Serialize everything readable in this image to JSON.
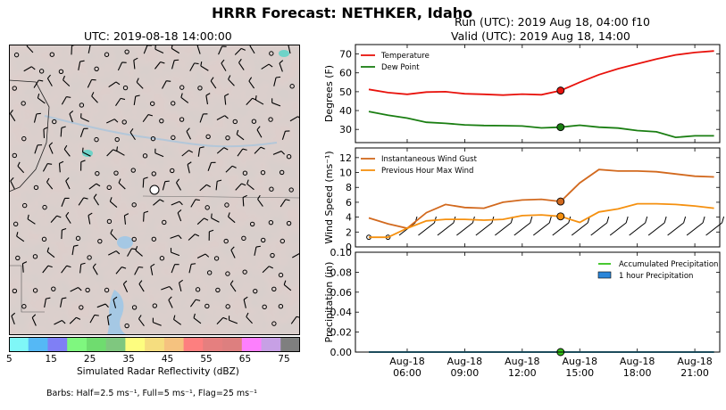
{
  "header": {
    "title": "HRRR Forecast: NETHKER, Idaho",
    "run": "Run (UTC): 2019 Aug 18, 04:00 f10",
    "valid": "Valid (UTC): 2019 Aug 18, 14:00"
  },
  "map": {
    "time_label": "UTC: 2019-08-18 14:00:00",
    "colorbar": {
      "label": "Simulated Radar Reflectivity (dBZ)",
      "ticks": [
        "5",
        "15",
        "25",
        "35",
        "45",
        "55",
        "65",
        "75"
      ],
      "colors": [
        "#7ff7f7",
        "#55b8f5",
        "#7f7ff5",
        "#7ff77f",
        "#6fdc6f",
        "#7fc77f",
        "#fdfd7f",
        "#f5dd7f",
        "#f5c27f",
        "#fd7f7f",
        "#e57f7f",
        "#dd7f7f",
        "#fd7ffd",
        "#c7a0e5",
        "#7f7f7f"
      ]
    },
    "barbs_note": "Barbs: Half=2.5 ms⁻¹, Full=5 ms⁻¹, Flag=25 ms⁻¹"
  },
  "chart_data": [
    {
      "type": "line",
      "ylabel": "Degrees (F)",
      "ylim": [
        23,
        75
      ],
      "yticks": [
        30,
        40,
        50,
        60,
        70
      ],
      "legend_position": "top-left",
      "x": [
        4,
        5,
        6,
        7,
        8,
        9,
        10,
        11,
        12,
        13,
        14,
        15,
        16,
        17,
        18,
        19,
        20,
        21,
        22
      ],
      "series": [
        {
          "name": "Temperature",
          "color": "#e8120c",
          "values": [
            51.2,
            49.5,
            48.6,
            49.8,
            50.0,
            48.9,
            48.6,
            48.2,
            48.7,
            48.4,
            50.6,
            55.0,
            59.0,
            62.2,
            64.8,
            67.3,
            69.5,
            70.8,
            71.6
          ]
        },
        {
          "name": "Dew Point",
          "color": "#1a7e12",
          "values": [
            39.5,
            37.5,
            36.0,
            33.8,
            33.2,
            32.4,
            32.1,
            32.0,
            31.8,
            30.8,
            31.2,
            32.2,
            31.2,
            30.7,
            29.4,
            28.7,
            25.8,
            26.6,
            26.6
          ]
        }
      ],
      "marker": {
        "x": 14,
        "values": [
          50.6,
          31.2
        ]
      }
    },
    {
      "type": "line",
      "ylabel": "Wind Speed (ms⁻¹)",
      "ylim": [
        0,
        13.3
      ],
      "yticks": [
        0,
        2,
        4,
        6,
        8,
        10,
        12
      ],
      "legend_position": "top-left",
      "x": [
        4,
        5,
        6,
        7,
        8,
        9,
        10,
        11,
        12,
        13,
        14,
        15,
        16,
        17,
        18,
        19,
        20,
        21,
        22
      ],
      "series": [
        {
          "name": "Instantaneous Wind Gust",
          "color": "#d2691e",
          "values": [
            3.9,
            3.1,
            2.5,
            4.6,
            5.7,
            5.3,
            5.2,
            6.0,
            6.3,
            6.4,
            6.1,
            8.6,
            10.4,
            10.2,
            10.2,
            10.1,
            9.8,
            9.5,
            9.4
          ]
        },
        {
          "name": "Previous Hour Max Wind",
          "color": "#f5900f",
          "values": [
            1.3,
            1.3,
            2.5,
            3.5,
            3.7,
            3.7,
            3.6,
            3.7,
            4.2,
            4.3,
            4.1,
            3.3,
            4.7,
            5.1,
            5.8,
            5.8,
            5.7,
            5.5,
            5.2
          ]
        }
      ],
      "marker": {
        "x": 14,
        "values": [
          6.1,
          4.1
        ]
      }
    },
    {
      "type": "line",
      "ylabel": "Precipitation (in)",
      "ylim": [
        0,
        0.1
      ],
      "yticks": [
        "0.00",
        "0.02",
        "0.04",
        "0.06",
        "0.08",
        "0.10"
      ],
      "legend_position": "top-right",
      "x": [
        4,
        5,
        6,
        7,
        8,
        9,
        10,
        11,
        12,
        13,
        14,
        15,
        16,
        17,
        18,
        19,
        20,
        21,
        22
      ],
      "series": [
        {
          "name": "Accumulated Precipitation",
          "color": "#34c21a",
          "values": [
            0,
            0,
            0,
            0,
            0,
            0,
            0,
            0,
            0,
            0,
            0,
            0,
            0,
            0,
            0,
            0,
            0,
            0,
            0
          ]
        },
        {
          "name": "1 hour Precipitation",
          "color": "#2b86d9",
          "values": [
            0,
            0,
            0,
            0,
            0,
            0,
            0,
            0,
            0,
            0,
            0,
            0,
            0,
            0,
            0,
            0,
            0,
            0,
            0
          ]
        }
      ],
      "marker": {
        "x": 14,
        "values": [
          0
        ]
      },
      "xticks": [
        {
          "x": 6,
          "label": "Aug-18\n06:00"
        },
        {
          "x": 9,
          "label": "Aug-18\n09:00"
        },
        {
          "x": 12,
          "label": "Aug-18\n12:00"
        },
        {
          "x": 15,
          "label": "Aug-18\n15:00"
        },
        {
          "x": 18,
          "label": "Aug-18\n18:00"
        },
        {
          "x": 21,
          "label": "Aug-18\n21:00"
        }
      ]
    }
  ]
}
